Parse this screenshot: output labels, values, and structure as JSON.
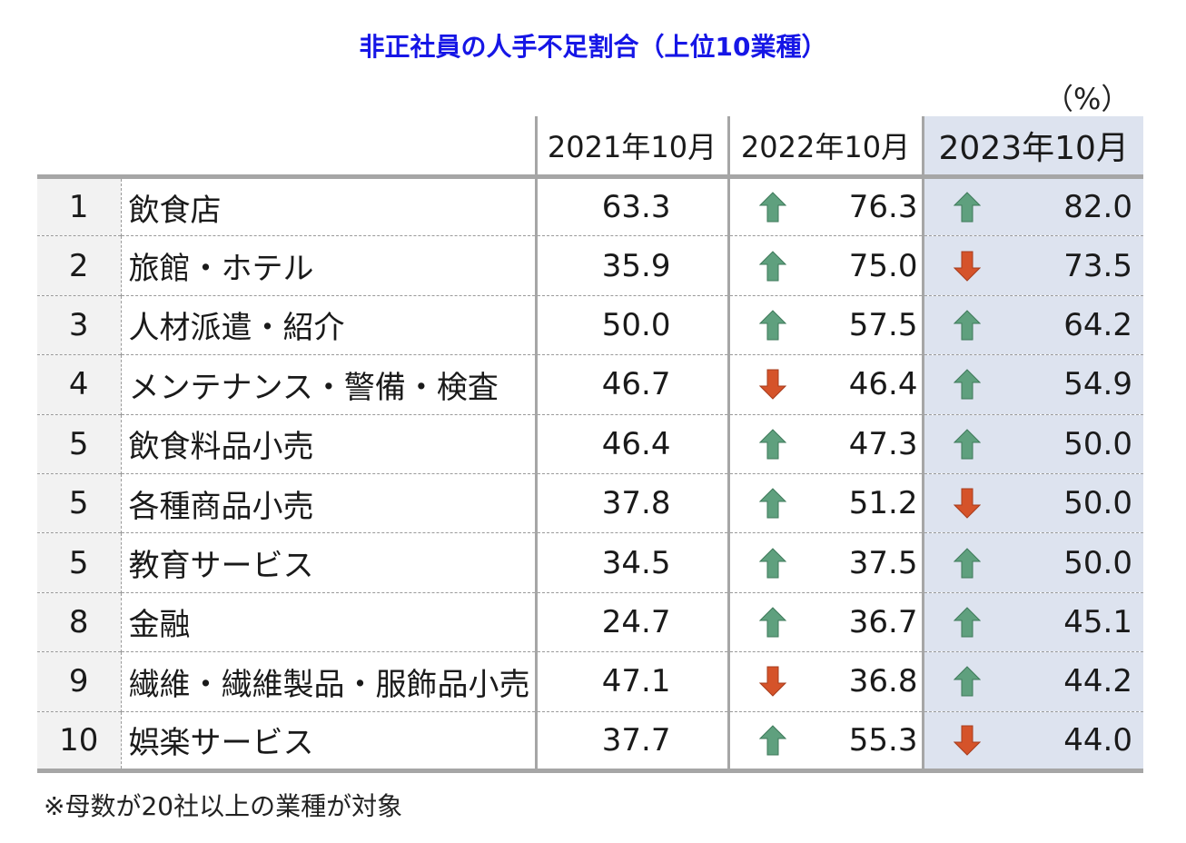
{
  "title": "非正社員の人手不足割合（上位10業種）",
  "unit": "（%）",
  "note": "※母数が20社以上の業種が対象",
  "colors": {
    "title": "#1616e6",
    "up": "#5fa07e",
    "down": "#d5532a",
    "highlight_column": "#dde3ef"
  },
  "chart_data": {
    "type": "table",
    "title": "非正社員の人手不足割合（上位10業種）",
    "unit": "（%）",
    "columns": [
      "2021年10月",
      "2022年10月",
      "2023年10月"
    ],
    "rows": [
      {
        "rank": "1",
        "industry": "飲食店",
        "values": [
          "63.3",
          "76.3",
          "82.0"
        ],
        "trend": [
          "",
          "up",
          "up"
        ]
      },
      {
        "rank": "2",
        "industry": "旅館・ホテル",
        "values": [
          "35.9",
          "75.0",
          "73.5"
        ],
        "trend": [
          "",
          "up",
          "down"
        ]
      },
      {
        "rank": "3",
        "industry": "人材派遣・紹介",
        "values": [
          "50.0",
          "57.5",
          "64.2"
        ],
        "trend": [
          "",
          "up",
          "up"
        ]
      },
      {
        "rank": "4",
        "industry": "メンテナンス・警備・検査",
        "values": [
          "46.7",
          "46.4",
          "54.9"
        ],
        "trend": [
          "",
          "down",
          "up"
        ]
      },
      {
        "rank": "5",
        "industry": "飲食料品小売",
        "values": [
          "46.4",
          "47.3",
          "50.0"
        ],
        "trend": [
          "",
          "up",
          "up"
        ]
      },
      {
        "rank": "5",
        "industry": "各種商品小売",
        "values": [
          "37.8",
          "51.2",
          "50.0"
        ],
        "trend": [
          "",
          "up",
          "down"
        ]
      },
      {
        "rank": "5",
        "industry": "教育サービス",
        "values": [
          "34.5",
          "37.5",
          "50.0"
        ],
        "trend": [
          "",
          "up",
          "up"
        ]
      },
      {
        "rank": "8",
        "industry": "金融",
        "values": [
          "24.7",
          "36.7",
          "45.1"
        ],
        "trend": [
          "",
          "up",
          "up"
        ]
      },
      {
        "rank": "9",
        "industry": "繊維・繊維製品・服飾品小売",
        "values": [
          "47.1",
          "36.8",
          "44.2"
        ],
        "trend": [
          "",
          "down",
          "up"
        ]
      },
      {
        "rank": "10",
        "industry": "娯楽サービス",
        "values": [
          "37.7",
          "55.3",
          "44.0"
        ],
        "trend": [
          "",
          "up",
          "down"
        ]
      }
    ]
  }
}
